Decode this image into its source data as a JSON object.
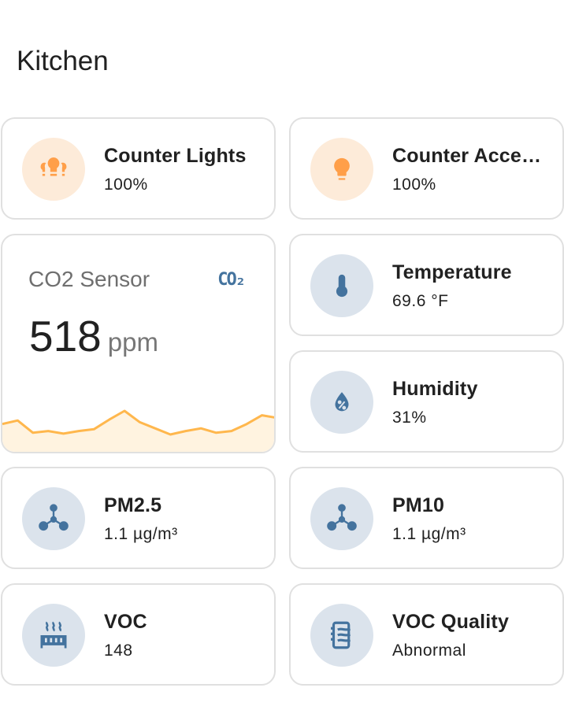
{
  "section_title": "Kitchen",
  "colors": {
    "light_on": "#ff9f49",
    "light_bg": "#fdebd9",
    "sensor_icon": "#44739e",
    "sensor_bg": "#dbe3ec",
    "graph_line": "#ffb74d",
    "graph_fill": "#fff3e0"
  },
  "cards": [
    {
      "name": "Counter Lights",
      "state": "100%",
      "icon": "lightbulb-group-icon"
    },
    {
      "name": "Counter Accent Lights",
      "state": "100%",
      "icon": "lightbulb-icon"
    },
    {
      "name": "Temperature",
      "state": "69.6 °F",
      "icon": "thermometer-icon"
    },
    {
      "name": "Humidity",
      "state": "31%",
      "icon": "water-percent-icon"
    },
    {
      "name": "PM2.5",
      "state": "1.1 µg/m³",
      "icon": "molecule-icon"
    },
    {
      "name": "PM10",
      "state": "1.1 µg/m³",
      "icon": "molecule-icon"
    },
    {
      "name": "VOC",
      "state": "148",
      "icon": "radiator-icon"
    },
    {
      "name": "VOC Quality",
      "state": "Abnormal",
      "icon": "air-filter-icon"
    }
  ],
  "co2": {
    "name": "CO2 Sensor",
    "value": "518",
    "unit": "ppm",
    "icon": "molecule-co2-icon",
    "icon_text": "CO₂",
    "history": [
      20,
      24,
      10,
      12,
      9,
      12,
      14,
      25,
      35,
      22,
      15,
      8,
      12,
      15,
      10,
      12,
      20,
      30,
      27
    ]
  }
}
